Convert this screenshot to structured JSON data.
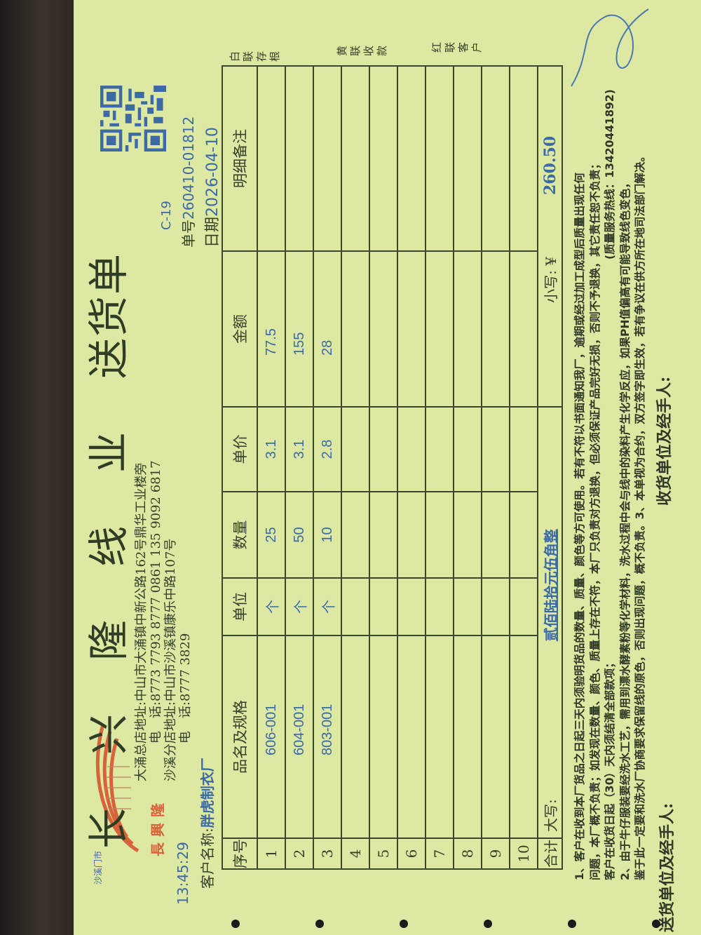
{
  "header": {
    "company_name": "长兴隆线业",
    "doc_type": "送货单",
    "logo_text": "長興隆",
    "logo_small_text": "沙溪门市",
    "time": "13:45:29",
    "branch_code": "C-19",
    "order_no_label": "单号",
    "order_no": "260410-01812",
    "date_label": "日期",
    "date": "2026-04-10",
    "addresses": [
      {
        "label": "大涌总店地址:",
        "value": "中山市大涌镇中新公路162号鼎华工业楼旁"
      },
      {
        "label": "电　话:",
        "value": "8773 7793  8777 0861  135 9092 6817"
      },
      {
        "label": "沙溪分店地址:",
        "value": "中山市沙溪镇康乐中路107号"
      },
      {
        "label": "电　话:",
        "value": "8777 3829"
      }
    ],
    "customer_label": "客户名称:",
    "customer": "胖虎制衣厂"
  },
  "copies": [
    "白联存根",
    "黄联收款",
    "红联客户"
  ],
  "table": {
    "columns": [
      "序号",
      "品名及规格",
      "单位",
      "数量",
      "单价",
      "金额",
      "明细备注"
    ],
    "rows": [
      [
        "1",
        "606-001",
        "个",
        "25",
        "3.1",
        "77.5",
        ""
      ],
      [
        "2",
        "604-001",
        "个",
        "50",
        "3.1",
        "155",
        ""
      ],
      [
        "3",
        "803-001",
        "个",
        "10",
        "2.8",
        "28",
        ""
      ],
      [
        "4",
        "",
        "",
        "",
        "",
        "",
        ""
      ],
      [
        "5",
        "",
        "",
        "",
        "",
        "",
        ""
      ],
      [
        "6",
        "",
        "",
        "",
        "",
        "",
        ""
      ],
      [
        "7",
        "",
        "",
        "",
        "",
        "",
        ""
      ],
      [
        "8",
        "",
        "",
        "",
        "",
        "",
        ""
      ],
      [
        "9",
        "",
        "",
        "",
        "",
        "",
        ""
      ],
      [
        "10",
        "",
        "",
        "",
        "",
        "",
        ""
      ]
    ],
    "total": {
      "label": "合计",
      "uppercase_label": "大写:",
      "uppercase_value": "贰佰陆拾元伍角整",
      "lowercase_label": "小写: ¥",
      "lowercase_value": "260.50"
    }
  },
  "notes": [
    "1、客户在收到本厂货品之日起三天内须验明货品的数量、质量、颜色等方可使用。若有不符以书面通知我厂，逾期或经过加工成型后质量出现任何",
    "问题，本厂概不负责；如发现在数量、颜色、质量上存在不符，本厂只负责对方退换，但必须保证产品完好无损，否则不予退换，其它责任恕不负责；",
    "客户在收货日起（30）天内须结清全部款项；",
    "2、由于牛仔服装要经洗水工艺，需用到漂水酵素粉等化学材料，洗水过程中会与线中的染料产生化学反应，如果PH值偏高有可能导致线色变色，",
    "鉴于此一定要和洗水厂协商要求保留线的原色，否则出现问题，概不负责。3、本单视为合约，双方签字即生效，若有争议在供方所在地司法部门解决。"
  ],
  "hotline": "(质量服务热线：13420441892)",
  "signatures": {
    "sender": "送货单位及经手人:",
    "receiver": "收货单位及经手人:"
  },
  "colors": {
    "paper": "#dde8a2",
    "ink": "#34402a",
    "print_blue": "#3c6aa6",
    "logo_red": "#d8623a"
  }
}
